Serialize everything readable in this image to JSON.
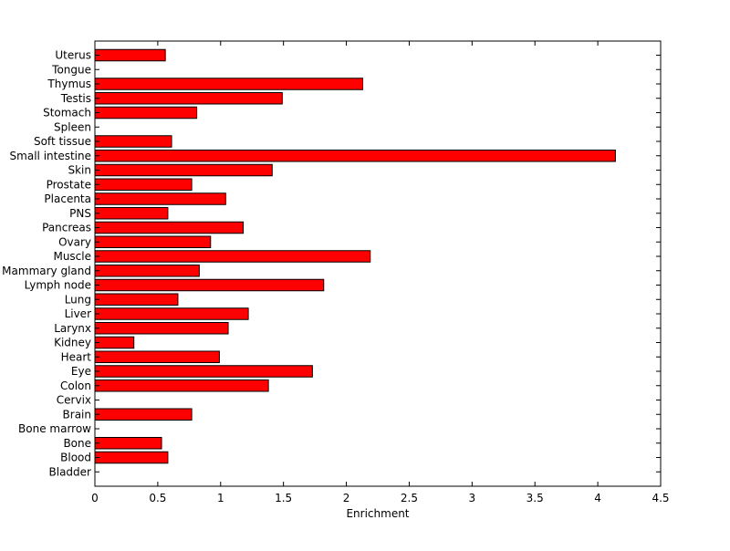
{
  "chart_data": {
    "type": "bar",
    "orientation": "horizontal",
    "xlabel": "Enrichment",
    "ylabel": "",
    "title": "",
    "xlim": [
      0,
      4.5
    ],
    "xticks": [
      "0",
      "0.5",
      "1",
      "1.5",
      "2",
      "2.5",
      "3",
      "3.5",
      "4",
      "4.5"
    ],
    "grid": false,
    "bar_color": "#ff0000",
    "categories": [
      "Uterus",
      "Tongue",
      "Thymus",
      "Testis",
      "Stomach",
      "Spleen",
      "Soft tissue",
      "Small intestine",
      "Skin",
      "Prostate",
      "Placenta",
      "PNS",
      "Pancreas",
      "Ovary",
      "Muscle",
      "Mammary gland",
      "Lymph node",
      "Lung",
      "Liver",
      "Larynx",
      "Kidney",
      "Heart",
      "Eye",
      "Colon",
      "Cervix",
      "Brain",
      "Bone marrow",
      "Bone",
      "Blood",
      "Bladder"
    ],
    "values": [
      0.56,
      0,
      2.13,
      1.49,
      0.81,
      0,
      0.61,
      4.14,
      1.41,
      0.77,
      1.04,
      0.58,
      1.18,
      0.92,
      2.19,
      0.83,
      1.82,
      0.66,
      1.22,
      1.06,
      0.31,
      0.99,
      1.73,
      1.38,
      0,
      0.77,
      0,
      0.53,
      0.58,
      0
    ]
  }
}
